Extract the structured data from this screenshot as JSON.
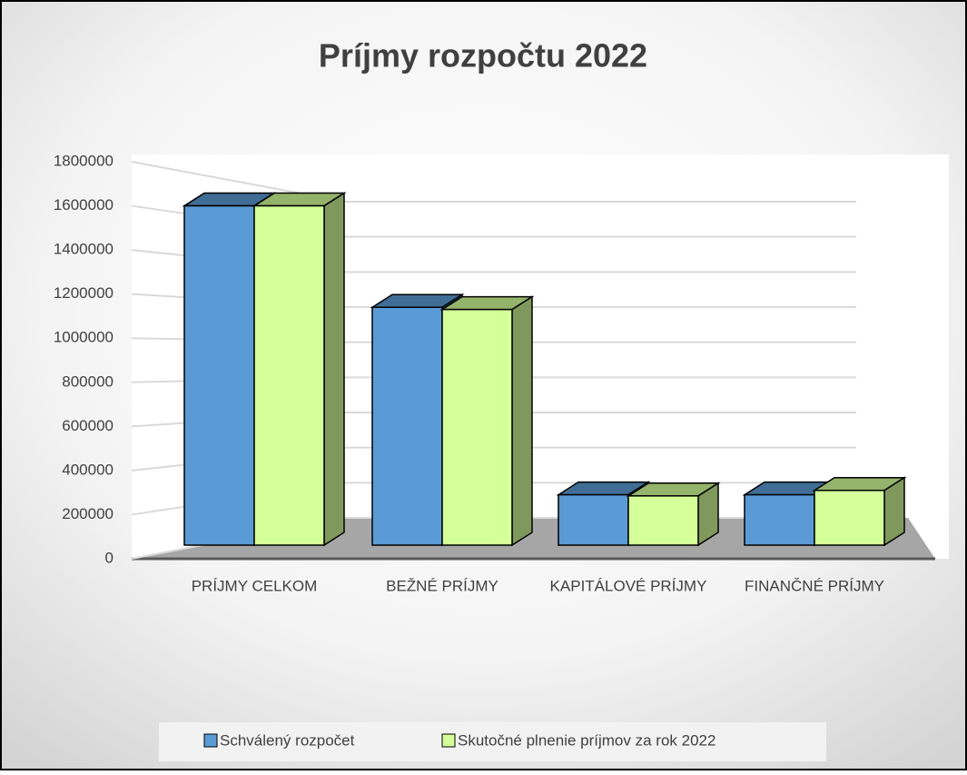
{
  "chart_data": {
    "type": "bar3d",
    "title": "Príjmy rozpočtu 2022",
    "categories": [
      "PRÍJMY CELKOM",
      "BEŽNÉ PRÍJMY",
      "KAPITÁLOVÉ PRÍJMY",
      "FINANČNÉ PRÍJMY"
    ],
    "series": [
      {
        "name": "Schválený rozpočet",
        "color": "#5b9bd5",
        "values": [
          1600000,
          1140000,
          290000,
          290000
        ]
      },
      {
        "name": "Skutočné plnenie príjmov za rok 2022",
        "color": "#d4ff99",
        "values": [
          1600000,
          1130000,
          285000,
          310000
        ]
      }
    ],
    "ylim": [
      0,
      1800000
    ],
    "yticks": [
      0,
      200000,
      400000,
      600000,
      800000,
      1000000,
      1200000,
      1400000,
      1600000,
      1800000
    ],
    "grid": true,
    "legend": "bottom"
  }
}
